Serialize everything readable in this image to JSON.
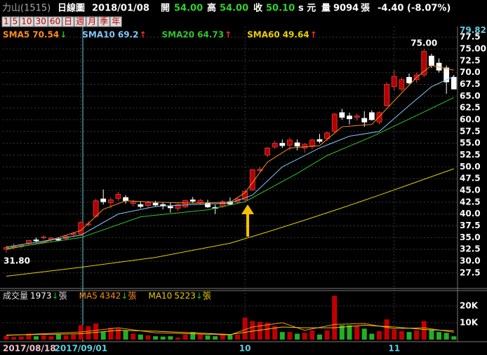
{
  "header": {
    "stock": "力山(1515)",
    "chart_kind": "日線圖",
    "date": "2018/01/08",
    "open_label": "開",
    "open": "54.00",
    "high_label": "高",
    "high": "54.00",
    "close_label": "收",
    "close": "50.10",
    "unit": "s 元",
    "volume_label": "量",
    "volume": "9094",
    "volume_unit": "張",
    "change": "-4.40 (-8.07%)"
  },
  "periods": [
    "1",
    "5",
    "10",
    "30",
    "60",
    "日",
    "週",
    "月",
    "季",
    "年"
  ],
  "chart_data": {
    "type": "candlestick",
    "categories": [
      "2017/08/18",
      null,
      null,
      null,
      null,
      null,
      null,
      null,
      null,
      null,
      "2017/09/01",
      null,
      null,
      null,
      null,
      null,
      null,
      null,
      null,
      null,
      null,
      null,
      null,
      null,
      null,
      null,
      null,
      null,
      null,
      null,
      null,
      null,
      "10",
      null,
      null,
      null,
      null,
      null,
      null,
      null,
      null,
      null,
      null,
      null,
      null,
      null,
      null,
      null,
      null,
      null,
      null,
      null,
      "11",
      null,
      null,
      null,
      null,
      null,
      null,
      null,
      null
    ],
    "open": [
      32.5,
      33.0,
      33.1,
      33.8,
      34.5,
      35.0,
      34.6,
      34.6,
      34.8,
      35.6,
      35.7,
      37.8,
      39.5,
      43.2,
      42.4,
      43.3,
      43.5,
      42.2,
      42.0,
      41.8,
      42.3,
      42.0,
      41.6,
      41.2,
      41.5,
      43.0,
      42.4,
      42.3,
      41.4,
      41.6,
      42.6,
      42.5,
      43.0,
      45.1,
      49.2,
      52.5,
      54.2,
      55.0,
      54.6,
      55.1,
      54.0,
      54.3,
      55.8,
      56.0,
      57.5,
      61.5,
      60.8,
      60.5,
      60.3,
      61.5,
      59.5,
      63.0,
      67.0,
      66.5,
      69.0,
      68.5,
      69.5,
      73.5,
      72.0,
      71.0,
      69.0
    ],
    "high": [
      33.3,
      33.8,
      33.6,
      34.5,
      35.0,
      35.5,
      35.2,
      35.0,
      35.5,
      36.2,
      38.5,
      38.5,
      43.2,
      45.2,
      43.5,
      44.7,
      44.0,
      43.0,
      42.6,
      42.8,
      42.8,
      42.5,
      42.4,
      42.2,
      43.0,
      43.6,
      43.2,
      43.0,
      42.0,
      43.0,
      43.5,
      43.4,
      45.2,
      49.5,
      50.0,
      54.2,
      55.5,
      55.8,
      56.2,
      55.8,
      55.0,
      56.0,
      57.0,
      57.5,
      61.4,
      62.3,
      61.5,
      61.3,
      61.8,
      62.0,
      61.8,
      68.0,
      70.5,
      69.0,
      69.8,
      70.0,
      75.0,
      74.0,
      73.0,
      71.5,
      69.5
    ],
    "low": [
      31.8,
      32.6,
      32.8,
      33.3,
      34.0,
      34.6,
      34.0,
      34.2,
      34.4,
      35.3,
      35.4,
      37.3,
      39.3,
      42.0,
      41.2,
      42.8,
      42.2,
      41.6,
      41.2,
      41.3,
      41.5,
      41.0,
      40.3,
      40.6,
      41.3,
      42.4,
      42.0,
      41.3,
      40.0,
      41.3,
      41.9,
      42.1,
      42.8,
      45.0,
      48.8,
      52.0,
      53.8,
      54.0,
      53.5,
      53.5,
      53.0,
      53.7,
      55.0,
      55.5,
      57.2,
      60.0,
      59.0,
      59.8,
      58.5,
      59.8,
      59.0,
      62.8,
      66.2,
      66.0,
      67.5,
      67.8,
      69.0,
      71.0,
      70.0,
      65.5,
      66.5
    ],
    "close": [
      32.9,
      33.2,
      33.4,
      34.4,
      34.3,
      35.1,
      34.9,
      34.5,
      35.3,
      35.9,
      38.2,
      37.9,
      42.8,
      42.6,
      43.0,
      44.2,
      42.8,
      42.5,
      41.6,
      42.4,
      41.9,
      41.8,
      41.3,
      42.0,
      42.9,
      42.7,
      42.9,
      41.5,
      41.2,
      42.6,
      42.1,
      43.2,
      44.8,
      49.4,
      49.5,
      54.0,
      55.0,
      54.5,
      55.7,
      54.4,
      54.8,
      55.7,
      55.4,
      57.2,
      61.2,
      60.5,
      60.2,
      60.8,
      59.5,
      60.0,
      61.5,
      67.5,
      69.2,
      68.5,
      67.8,
      69.5,
      74.5,
      71.5,
      70.5,
      68.0,
      66.5
    ],
    "up_color": "#b40000",
    "down_color": "#ffffff",
    "ylim": [
      24.5,
      79.82
    ],
    "yticks": [
      27.5,
      {
        "value": 30,
        "label": "30.0"
      },
      32.5,
      {
        "value": 35,
        "label": "35.0"
      },
      37.5,
      {
        "value": 40,
        "label": "40.0"
      },
      42.5,
      {
        "value": 45,
        "label": "45.0"
      },
      47.5,
      {
        "value": 50,
        "label": "50.0"
      },
      52.5,
      {
        "value": 55,
        "label": "55.0"
      },
      57.5,
      {
        "value": 60,
        "label": "60.0"
      },
      62.5,
      {
        "value": 65,
        "label": "65.0"
      },
      67.5,
      {
        "value": 70,
        "label": "70.0"
      },
      72.5,
      {
        "value": 75,
        "label": "75.00"
      },
      77.5
    ],
    "grid": true,
    "annotations": [
      {
        "value": 75,
        "label": "75.00",
        "index": 56
      },
      {
        "value": 31.8,
        "label": "31.80",
        "index": 0
      }
    ],
    "ma_series": [
      {
        "name": "SMA5",
        "last": 70.54,
        "arrow": "↓",
        "arrow_color": "#21c321",
        "color": "#ff8c1a",
        "x": [
          0,
          5,
          10,
          13,
          16,
          20,
          25,
          30,
          32,
          35,
          38,
          42,
          45,
          49,
          52,
          55,
          57,
          60
        ],
        "values": [
          32.5,
          34,
          36.5,
          41,
          42.8,
          42.5,
          42.3,
          42.5,
          44.5,
          51,
          54,
          54.5,
          58.5,
          59,
          64,
          69,
          71.5,
          70.5
        ]
      },
      {
        "name": "SMA10",
        "last": 69.2,
        "arrow": "↑",
        "arrow_color": "#ff2a2a",
        "color": "#80c8f8",
        "x": [
          0,
          10,
          15,
          20,
          25,
          30,
          33,
          37,
          42,
          46,
          50,
          54,
          57,
          60
        ],
        "values": [
          33,
          35.5,
          40,
          41.6,
          42,
          42.3,
          44,
          50,
          54,
          56.5,
          57.5,
          63,
          67,
          69.2
        ]
      },
      {
        "name": "SMA20",
        "last": 64.73,
        "arrow": "↑",
        "arrow_color": "#ff2a2a",
        "color": "#2ec52e",
        "x": [
          0,
          10,
          18,
          27,
          32,
          39,
          43,
          49,
          55,
          60
        ],
        "values": [
          32.7,
          35,
          39.4,
          40.9,
          42.6,
          48.6,
          52.4,
          56.4,
          60.9,
          64.7
        ]
      },
      {
        "name": "SMA60",
        "last": 49.64,
        "arrow": "↑",
        "arrow_color": "#ff2a2a",
        "color": "#e8d000",
        "x": [
          0,
          10,
          20,
          30,
          35,
          40,
          45,
          50,
          55,
          60
        ],
        "values": [
          26.8,
          28.7,
          30.8,
          33.8,
          36.2,
          38.7,
          41.3,
          44.0,
          46.8,
          49.6
        ]
      }
    ],
    "volume": {
      "label": "成交量",
      "last": 1973,
      "arrow": "↓",
      "unit": "張",
      "values": [
        2200,
        1500,
        1800,
        3500,
        2000,
        2500,
        2000,
        3000,
        2500,
        3000,
        8500,
        8000,
        9500,
        4500,
        7000,
        6500,
        5500,
        3500,
        3000,
        2500,
        2000,
        1800,
        2000,
        1200,
        3000,
        4500,
        3000,
        2500,
        2000,
        3500,
        2800,
        3000,
        13000,
        11000,
        10500,
        10000,
        8000,
        4500,
        4500,
        3500,
        4000,
        5500,
        3000,
        5500,
        26000,
        8500,
        8500,
        8000,
        6500,
        3500,
        5000,
        12000,
        6000,
        5000,
        4500,
        5500,
        11000,
        6000,
        4500,
        4000,
        1973
      ],
      "up_color": "#c00000",
      "down_color": "#22b022",
      "ylim": [
        0,
        27000
      ],
      "yticks": [
        {
          "value": 10000,
          "label": "10K"
        },
        {
          "value": 20000,
          "label": "20K"
        }
      ],
      "ma": [
        {
          "name": "MA5",
          "last": 4342,
          "arrow": "↓",
          "unit": "張",
          "color": "#ff8c1a",
          "x": [
            0,
            10,
            15,
            20,
            30,
            33,
            37,
            40,
            44,
            48,
            52,
            56,
            60
          ],
          "values": [
            2500,
            4500,
            7000,
            4000,
            2800,
            7500,
            10000,
            5500,
            9000,
            9500,
            6500,
            7000,
            4342
          ]
        },
        {
          "name": "MA10",
          "last": 5223,
          "arrow": "↓",
          "unit": "張",
          "color": "#e8d000",
          "x": [
            0,
            10,
            15,
            20,
            30,
            33,
            37,
            40,
            44,
            48,
            52,
            56,
            60
          ],
          "values": [
            2700,
            3500,
            5500,
            5000,
            3000,
            5000,
            7500,
            7000,
            7000,
            8500,
            7500,
            6000,
            5223
          ]
        }
      ]
    }
  }
}
